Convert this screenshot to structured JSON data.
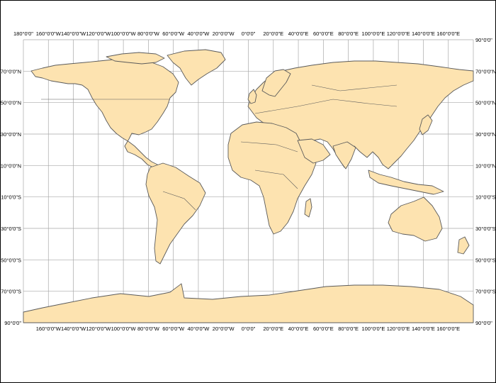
{
  "map": {
    "projection": "plate-carree",
    "colors": {
      "land": "#fde3b0",
      "coast": "#5a5a5a",
      "graticule": "#a9a9a9",
      "background": "#ffffff"
    },
    "longitude_labels": [
      "180°0'0\"",
      "160°0'0\"W",
      "140°0'0\"W",
      "120°0'0\"W",
      "100°0'0\"W",
      "80°0'0\"W",
      "60°0'0\"W",
      "40°0'0\"W",
      "20°0'0\"W",
      "0°0'0\"",
      "20°0'0\"E",
      "40°0'0\"E",
      "60°0'0\"E",
      "80°0'0\"E",
      "100°0'0\"E",
      "120°0'0\"E",
      "140°0'0\"E",
      "160°0'0\"E"
    ],
    "latitude_labels_left": [
      "70°0'0\"N",
      "50°0'0\"N",
      "30°0'0\"N",
      "10°0'0\"N",
      "10°0'0\"S",
      "30°0'0\"S",
      "50°0'0\"S",
      "70°0'0\"S",
      "90°0'0\""
    ],
    "latitude_labels_right": [
      "90°0'0\"",
      "70°0'0\"N",
      "50°0'0\"N",
      "30°0'0\"N",
      "10°0'0\"N",
      "10°0'0\"S",
      "30°0'0\"S",
      "50°0'0\"S",
      "70°0'0\"S",
      "90°0'0\""
    ]
  }
}
